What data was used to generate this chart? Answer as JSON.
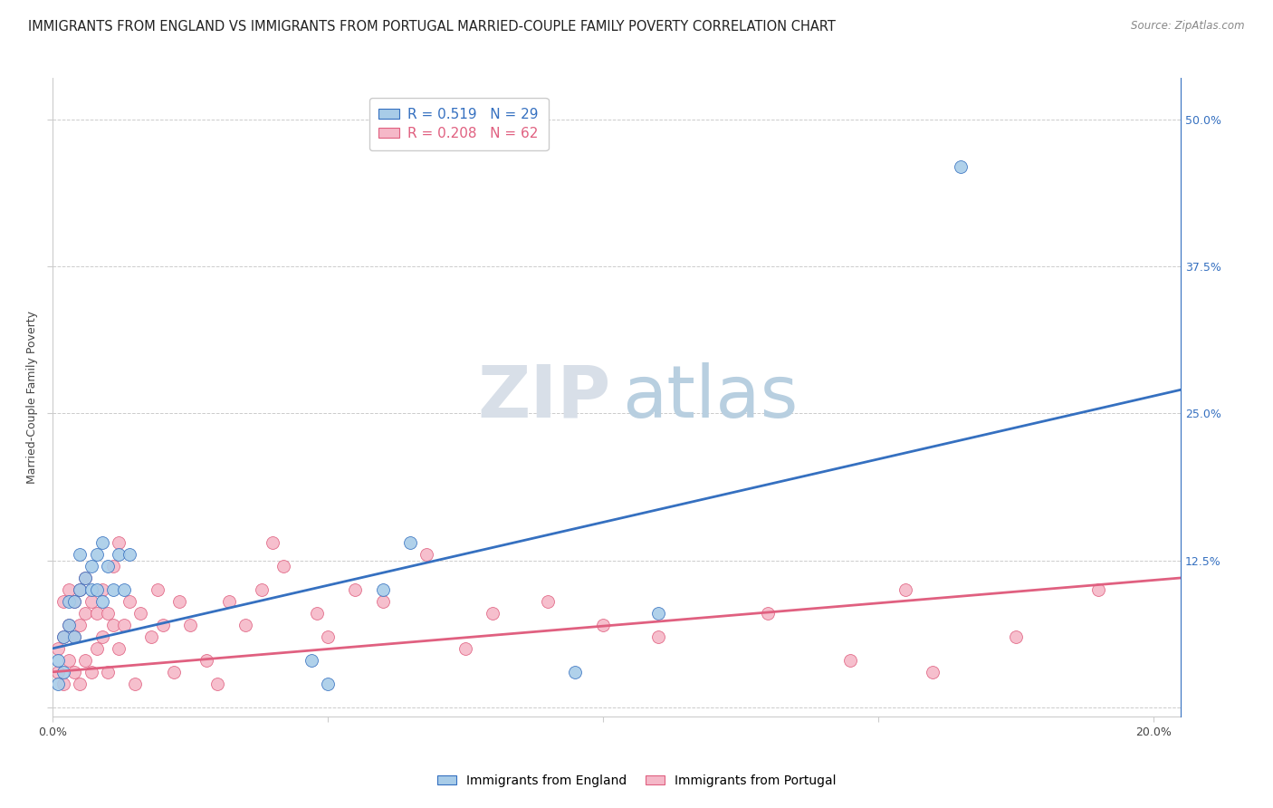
{
  "title": "IMMIGRANTS FROM ENGLAND VS IMMIGRANTS FROM PORTUGAL MARRIED-COUPLE FAMILY POVERTY CORRELATION CHART",
  "source": "Source: ZipAtlas.com",
  "ylabel": "Married-Couple Family Poverty",
  "x_tick_labels": [
    "0.0%",
    "",
    "",
    "",
    "20.0%"
  ],
  "y_right_labels": [
    "",
    "12.5%",
    "25.0%",
    "37.5%",
    "50.0%"
  ],
  "xlim": [
    0.0,
    0.205
  ],
  "ylim": [
    -0.008,
    0.535
  ],
  "england_R": 0.519,
  "england_N": 29,
  "portugal_R": 0.208,
  "portugal_N": 62,
  "england_color": "#a8cce8",
  "portugal_color": "#f5b8c8",
  "england_line_color": "#3570c0",
  "portugal_line_color": "#e06080",
  "watermark_zip_color": "#d8dfe8",
  "watermark_atlas_color": "#b8cfe0",
  "england_x": [
    0.001,
    0.001,
    0.002,
    0.002,
    0.003,
    0.003,
    0.004,
    0.004,
    0.005,
    0.005,
    0.006,
    0.007,
    0.007,
    0.008,
    0.008,
    0.009,
    0.009,
    0.01,
    0.011,
    0.012,
    0.013,
    0.014,
    0.047,
    0.05,
    0.06,
    0.065,
    0.095,
    0.11,
    0.165
  ],
  "england_y": [
    0.02,
    0.04,
    0.03,
    0.06,
    0.07,
    0.09,
    0.06,
    0.09,
    0.1,
    0.13,
    0.11,
    0.1,
    0.12,
    0.1,
    0.13,
    0.09,
    0.14,
    0.12,
    0.1,
    0.13,
    0.1,
    0.13,
    0.04,
    0.02,
    0.1,
    0.14,
    0.03,
    0.08,
    0.46
  ],
  "portugal_x": [
    0.001,
    0.001,
    0.002,
    0.002,
    0.002,
    0.003,
    0.003,
    0.003,
    0.004,
    0.004,
    0.004,
    0.005,
    0.005,
    0.005,
    0.006,
    0.006,
    0.006,
    0.007,
    0.007,
    0.008,
    0.008,
    0.009,
    0.009,
    0.01,
    0.01,
    0.011,
    0.011,
    0.012,
    0.012,
    0.013,
    0.014,
    0.015,
    0.016,
    0.018,
    0.019,
    0.02,
    0.022,
    0.023,
    0.025,
    0.028,
    0.03,
    0.032,
    0.035,
    0.038,
    0.04,
    0.042,
    0.048,
    0.05,
    0.055,
    0.06,
    0.068,
    0.075,
    0.08,
    0.09,
    0.1,
    0.11,
    0.13,
    0.145,
    0.155,
    0.16,
    0.175,
    0.19
  ],
  "portugal_y": [
    0.03,
    0.05,
    0.02,
    0.06,
    0.09,
    0.04,
    0.07,
    0.1,
    0.03,
    0.06,
    0.09,
    0.02,
    0.07,
    0.1,
    0.04,
    0.08,
    0.11,
    0.03,
    0.09,
    0.05,
    0.08,
    0.06,
    0.1,
    0.03,
    0.08,
    0.07,
    0.12,
    0.05,
    0.14,
    0.07,
    0.09,
    0.02,
    0.08,
    0.06,
    0.1,
    0.07,
    0.03,
    0.09,
    0.07,
    0.04,
    0.02,
    0.09,
    0.07,
    0.1,
    0.14,
    0.12,
    0.08,
    0.06,
    0.1,
    0.09,
    0.13,
    0.05,
    0.08,
    0.09,
    0.07,
    0.06,
    0.08,
    0.04,
    0.1,
    0.03,
    0.06,
    0.1
  ],
  "eng_line_x0": 0.0,
  "eng_line_y0": 0.05,
  "eng_line_x1": 0.205,
  "eng_line_y1": 0.27,
  "port_line_x0": 0.0,
  "port_line_y0": 0.03,
  "port_line_x1": 0.205,
  "port_line_y1": 0.11,
  "grid_color": "#cccccc",
  "background_color": "#ffffff",
  "title_fontsize": 10.5,
  "axis_label_fontsize": 9,
  "tick_fontsize": 9,
  "legend_fontsize": 11
}
